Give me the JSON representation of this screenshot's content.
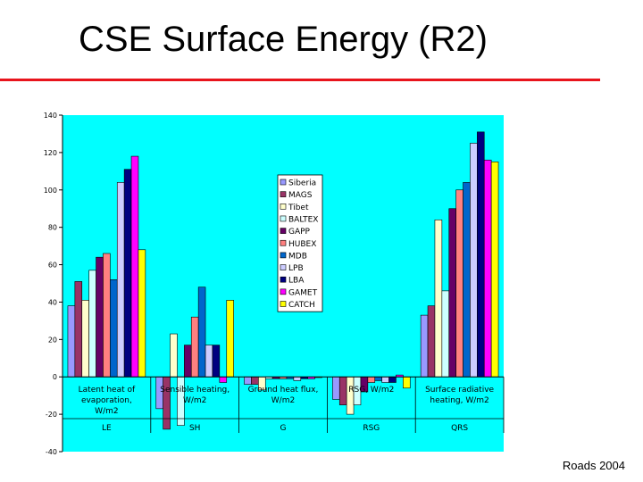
{
  "slide": {
    "title": "CSE Surface Energy (R2)",
    "credit": "Roads 2004",
    "accent_color": "#e8141c"
  },
  "chart_data": {
    "type": "bar",
    "ylim": [
      -40,
      140
    ],
    "yticks": [
      -40,
      -20,
      0,
      20,
      40,
      60,
      80,
      100,
      120,
      140
    ],
    "plot_background": "#00ffff",
    "legend_position": "center",
    "categories": [
      {
        "label": "Latent heat of evaporation, W/m2",
        "lines": [
          "Latent heat of",
          "evaporation,",
          "W/m2"
        ],
        "short": "LE"
      },
      {
        "label": "Sensible heating, W/m2",
        "lines": [
          "Sensible heating,",
          "W/m2"
        ],
        "short": "SH"
      },
      {
        "label": "Ground heat flux, W/m2",
        "lines": [
          "Ground heat flux,",
          "W/m2"
        ],
        "short": "G"
      },
      {
        "label": "RSG, W/m2",
        "lines": [
          "RSG, W/m2"
        ],
        "short": "RSG"
      },
      {
        "label": "Surface radiative heating, W/m2",
        "lines": [
          "Surface radiative",
          "heating, W/m2"
        ],
        "short": "QRS"
      }
    ],
    "series": [
      {
        "name": "Siberia",
        "color": "#9999ff",
        "values": [
          38,
          -17,
          -4,
          -12,
          33
        ]
      },
      {
        "name": "MAGS",
        "color": "#993366",
        "values": [
          51,
          -28,
          -4,
          -15,
          38
        ]
      },
      {
        "name": "Tibet",
        "color": "#ffffcc",
        "values": [
          41,
          23,
          -7,
          -20,
          84
        ]
      },
      {
        "name": "BALTEX",
        "color": "#ccffff",
        "values": [
          57,
          -26,
          -1,
          -15,
          46
        ]
      },
      {
        "name": "GAPP",
        "color": "#660066",
        "values": [
          64,
          17,
          -1,
          -8,
          90
        ]
      },
      {
        "name": "HUBEX",
        "color": "#ff8080",
        "values": [
          66,
          32,
          -1,
          -3,
          100
        ]
      },
      {
        "name": "MDB",
        "color": "#0066cc",
        "values": [
          52,
          48,
          -1,
          -2,
          104
        ]
      },
      {
        "name": "LPB",
        "color": "#ccccff",
        "values": [
          104,
          17,
          -2,
          -3,
          125
        ]
      },
      {
        "name": "LBA",
        "color": "#000080",
        "values": [
          111,
          17,
          -1,
          -3,
          131
        ]
      },
      {
        "name": "GAMET",
        "color": "#ff00ff",
        "values": [
          118,
          -3,
          -1,
          1,
          116
        ]
      },
      {
        "name": "CATCH",
        "color": "#ffff00",
        "values": [
          68,
          41,
          0,
          -6,
          115
        ]
      }
    ]
  }
}
